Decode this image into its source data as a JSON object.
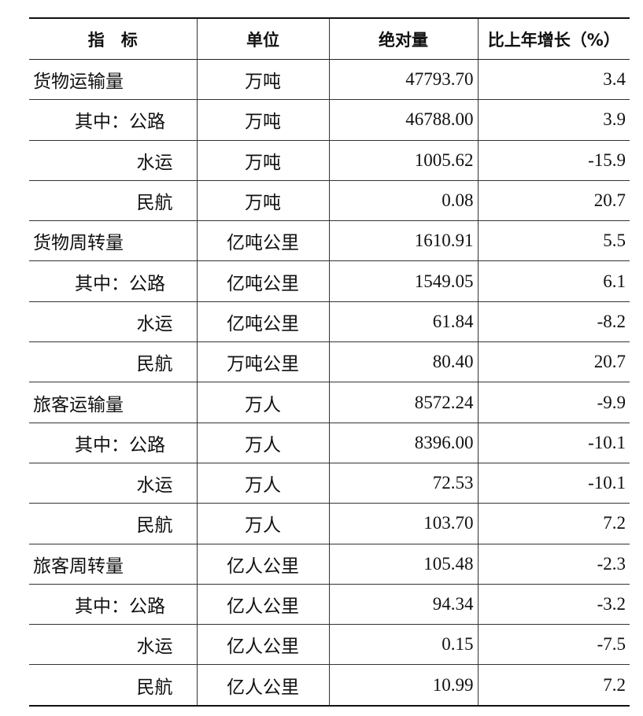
{
  "table": {
    "header": [
      "指　标",
      "单位",
      "绝对量",
      "比上年增长（%）"
    ],
    "rows": [
      [
        "货物运输量",
        "万吨",
        "47793.70",
        "3.4"
      ],
      [
        "其中：公路",
        "万吨",
        "46788.00",
        "3.9"
      ],
      [
        "水运",
        "万吨",
        "1005.62",
        "-15.9"
      ],
      [
        "民航",
        "万吨",
        "0.08",
        "20.7"
      ],
      [
        "货物周转量",
        "亿吨公里",
        "1610.91",
        "5.5"
      ],
      [
        "其中：公路",
        "亿吨公里",
        "1549.05",
        "6.1"
      ],
      [
        "水运",
        "亿吨公里",
        "61.84",
        "-8.2"
      ],
      [
        "民航",
        "万吨公里",
        "80.40",
        "20.7"
      ],
      [
        "旅客运输量",
        "万人",
        "8572.24",
        "-9.9"
      ],
      [
        "其中：公路",
        "万人",
        "8396.00",
        "-10.1"
      ],
      [
        "水运",
        "万人",
        "72.53",
        "-10.1"
      ],
      [
        "民航",
        "万人",
        "103.70",
        "7.2"
      ],
      [
        "旅客周转量",
        "亿人公里",
        "105.48",
        "-2.3"
      ],
      [
        "其中：公路",
        "亿人公里",
        "94.34",
        "-3.2"
      ],
      [
        "水运",
        "亿人公里",
        "0.15",
        "-7.5"
      ],
      [
        "民航",
        "亿人公里",
        "10.99",
        "7.2"
      ]
    ]
  }
}
